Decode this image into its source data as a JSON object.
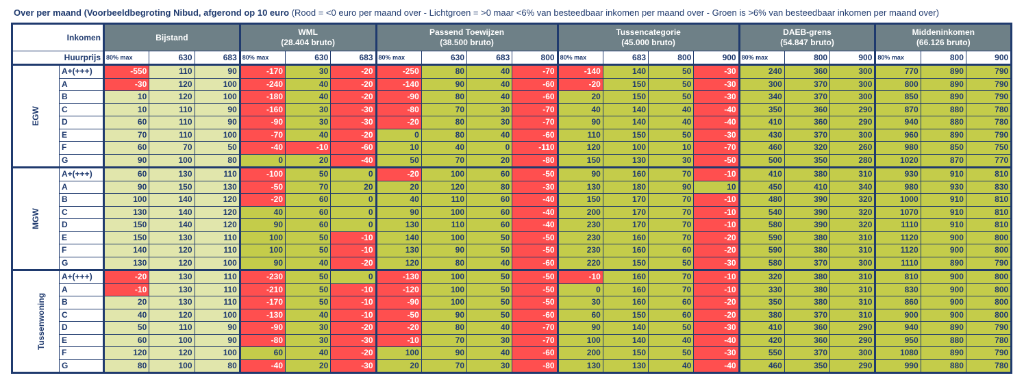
{
  "title": {
    "bold": "Over per maand (Voorbeeldbegroting Nibud, afgerond op 10 euro",
    "legend": " (Rood = <0 euro per maand over - Lichtgroen = >0 maar <6% van besteedbaar inkomen per maand over - Groen is >6% van besteedbaar inkomen per maand over)"
  },
  "colors": {
    "red": "#FF4F4F",
    "light_green": "#E1E6AC",
    "green": "#C4CC4A",
    "header": "#6E8087",
    "text": "#1F3A6E",
    "red_text": "#FFFFFF"
  },
  "header": {
    "inkomen_label": "Inkomen",
    "huurprijs_label": "Huurprijs",
    "groups": [
      {
        "name": "Bijstand",
        "sub": "",
        "style": "light",
        "prices": [
          "80% max",
          "630",
          "683"
        ]
      },
      {
        "name": "WML",
        "sub": "(28.404 bruto)",
        "style": "green",
        "prices": [
          "80% max",
          "630",
          "683"
        ]
      },
      {
        "name": "Passend Toewijzen",
        "sub": "(38.500 bruto)",
        "style": "green",
        "prices": [
          "80% max",
          "630",
          "683",
          "800"
        ]
      },
      {
        "name": "Tussencategorie",
        "sub": "(45.000 bruto)",
        "style": "green",
        "prices": [
          "80% max",
          "683",
          "800",
          "900"
        ]
      },
      {
        "name": "DAEB-grens",
        "sub": "(54.847 bruto)",
        "style": "green",
        "prices": [
          "80% max",
          "800",
          "900"
        ]
      },
      {
        "name": "Middeninkomen",
        "sub": "(66.126 bruto)",
        "style": "green",
        "prices": [
          "80% max",
          "800",
          "900"
        ]
      }
    ]
  },
  "sections": [
    {
      "name": "EGW",
      "rows": [
        {
          "label": "A+(+++)",
          "values": [
            -550,
            110,
            90,
            -170,
            30,
            -20,
            -250,
            80,
            40,
            -70,
            -140,
            140,
            50,
            -30,
            240,
            360,
            300,
            770,
            890,
            790
          ]
        },
        {
          "label": "A",
          "values": [
            -30,
            120,
            100,
            -240,
            40,
            -20,
            -140,
            90,
            40,
            -60,
            -20,
            150,
            50,
            -30,
            300,
            370,
            300,
            800,
            890,
            790
          ]
        },
        {
          "label": "B",
          "values": [
            10,
            120,
            100,
            -180,
            40,
            -20,
            -90,
            80,
            40,
            -60,
            20,
            150,
            50,
            -30,
            340,
            370,
            300,
            850,
            890,
            790
          ]
        },
        {
          "label": "C",
          "values": [
            10,
            110,
            90,
            -160,
            30,
            -30,
            -80,
            70,
            30,
            -70,
            40,
            140,
            40,
            -40,
            350,
            360,
            290,
            870,
            880,
            780
          ]
        },
        {
          "label": "D",
          "values": [
            60,
            110,
            90,
            -90,
            30,
            -30,
            -20,
            80,
            30,
            -70,
            90,
            140,
            40,
            -40,
            410,
            360,
            290,
            940,
            880,
            780
          ]
        },
        {
          "label": "E",
          "values": [
            70,
            110,
            100,
            -70,
            40,
            -20,
            0,
            80,
            40,
            -60,
            110,
            150,
            50,
            -30,
            430,
            370,
            300,
            960,
            890,
            790
          ]
        },
        {
          "label": "F",
          "values": [
            60,
            70,
            50,
            -40,
            -10,
            -60,
            10,
            40,
            0,
            -110,
            120,
            100,
            10,
            -70,
            460,
            320,
            260,
            980,
            850,
            750
          ]
        },
        {
          "label": "G",
          "values": [
            90,
            100,
            80,
            0,
            20,
            -40,
            50,
            70,
            20,
            -80,
            150,
            130,
            30,
            -50,
            500,
            350,
            280,
            1020,
            870,
            770
          ]
        }
      ]
    },
    {
      "name": "MGW",
      "rows": [
        {
          "label": "A+(+++)",
          "values": [
            60,
            130,
            110,
            -100,
            50,
            0,
            -20,
            100,
            60,
            -50,
            90,
            160,
            70,
            -10,
            410,
            380,
            310,
            930,
            910,
            810
          ]
        },
        {
          "label": "A",
          "values": [
            90,
            150,
            130,
            -50,
            70,
            20,
            20,
            120,
            80,
            -30,
            130,
            180,
            90,
            10,
            450,
            410,
            340,
            980,
            930,
            830
          ]
        },
        {
          "label": "B",
          "values": [
            100,
            140,
            120,
            -20,
            60,
            0,
            40,
            110,
            60,
            -40,
            150,
            170,
            70,
            -10,
            480,
            390,
            320,
            1000,
            910,
            810
          ]
        },
        {
          "label": "C",
          "values": [
            130,
            140,
            120,
            40,
            60,
            0,
            90,
            100,
            60,
            -40,
            200,
            170,
            70,
            -10,
            540,
            390,
            320,
            1070,
            910,
            810
          ]
        },
        {
          "label": "D",
          "values": [
            150,
            140,
            120,
            90,
            60,
            0,
            130,
            110,
            60,
            -40,
            230,
            170,
            70,
            -10,
            580,
            390,
            320,
            1110,
            910,
            810
          ]
        },
        {
          "label": "E",
          "values": [
            150,
            130,
            110,
            100,
            50,
            -10,
            140,
            100,
            50,
            -50,
            230,
            160,
            70,
            -20,
            590,
            380,
            310,
            1120,
            900,
            800
          ]
        },
        {
          "label": "F",
          "values": [
            140,
            120,
            110,
            100,
            50,
            -10,
            130,
            90,
            50,
            -50,
            230,
            160,
            60,
            -20,
            590,
            380,
            310,
            1120,
            900,
            800
          ]
        },
        {
          "label": "G",
          "values": [
            130,
            120,
            100,
            90,
            40,
            -20,
            120,
            80,
            40,
            -60,
            220,
            150,
            50,
            -30,
            580,
            370,
            300,
            1110,
            890,
            790
          ]
        }
      ]
    },
    {
      "name": "Tussenwoning",
      "rows": [
        {
          "label": "A+(+++)",
          "values": [
            -20,
            130,
            110,
            -230,
            50,
            0,
            -130,
            100,
            50,
            -50,
            -10,
            160,
            70,
            -10,
            320,
            380,
            310,
            810,
            900,
            800
          ]
        },
        {
          "label": "A",
          "values": [
            -10,
            130,
            110,
            -210,
            50,
            -10,
            -120,
            100,
            50,
            -50,
            0,
            160,
            70,
            -10,
            330,
            380,
            310,
            830,
            900,
            800
          ]
        },
        {
          "label": "B",
          "values": [
            20,
            130,
            110,
            -170,
            50,
            -10,
            -90,
            100,
            50,
            -50,
            30,
            160,
            60,
            -20,
            350,
            380,
            310,
            860,
            900,
            800
          ]
        },
        {
          "label": "C",
          "values": [
            40,
            120,
            100,
            -130,
            40,
            -10,
            -50,
            90,
            50,
            -60,
            60,
            150,
            60,
            -20,
            380,
            370,
            310,
            900,
            900,
            800
          ]
        },
        {
          "label": "D",
          "values": [
            50,
            110,
            90,
            -90,
            30,
            -20,
            -20,
            80,
            40,
            -70,
            90,
            140,
            50,
            -30,
            410,
            360,
            290,
            940,
            890,
            790
          ]
        },
        {
          "label": "E",
          "values": [
            60,
            100,
            90,
            -80,
            30,
            -30,
            -10,
            70,
            30,
            -70,
            100,
            140,
            40,
            -40,
            420,
            360,
            290,
            950,
            880,
            780
          ]
        },
        {
          "label": "F",
          "values": [
            120,
            120,
            100,
            60,
            40,
            -20,
            100,
            90,
            40,
            -60,
            200,
            150,
            50,
            -30,
            550,
            370,
            300,
            1080,
            890,
            790
          ]
        },
        {
          "label": "G",
          "values": [
            80,
            100,
            80,
            -40,
            20,
            -30,
            20,
            70,
            30,
            -80,
            130,
            130,
            40,
            -40,
            460,
            350,
            290,
            990,
            880,
            780
          ]
        }
      ]
    }
  ]
}
